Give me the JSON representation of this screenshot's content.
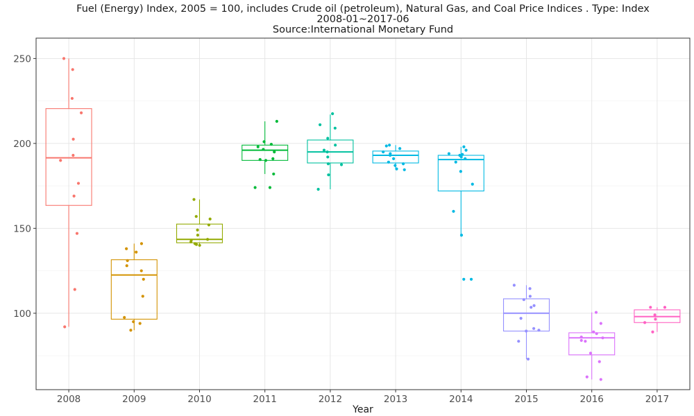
{
  "chart_data": {
    "type": "box",
    "title": "Fuel (Energy) Index, 2005 = 100, includes Crude oil (petroleum), Natural Gas, and Coal Price Indices . Type: Index",
    "subtitle": "2008-01~2017-06",
    "source": "Source:International Monetary Fund",
    "xlabel": "Year",
    "ylabel": "",
    "ylim": [
      55,
      262
    ],
    "yticks": [
      100,
      150,
      200,
      250
    ],
    "grid": true,
    "jitter_points": true,
    "categories": [
      "2008",
      "2009",
      "2010",
      "2011",
      "2012",
      "2013",
      "2014",
      "2015",
      "2016",
      "2017"
    ],
    "colors": [
      "#F8766D",
      "#D39200",
      "#93AA00",
      "#00BA38",
      "#00C19F",
      "#00B9E3",
      "#00B9E3",
      "#9590FF",
      "#DB72FB",
      "#FF61C3"
    ],
    "boxes": [
      {
        "year": "2008",
        "color": "#F8766D",
        "whisker_low": 92,
        "q1": 163.5,
        "median": 191.5,
        "q3": 220.5,
        "whisker_high": 250,
        "points": [
          243.5,
          250,
          226.5,
          218,
          202.5,
          193,
          190,
          176.5,
          169,
          147,
          114,
          92
        ]
      },
      {
        "year": "2009",
        "color": "#D39200",
        "whisker_low": 90,
        "q1": 96.5,
        "median": 122.5,
        "q3": 131.5,
        "whisker_high": 141,
        "points": [
          141,
          138,
          136,
          131,
          128,
          125,
          120,
          110,
          97.5,
          95,
          94,
          90
        ]
      },
      {
        "year": "2010",
        "color": "#93AA00",
        "whisker_low": 140,
        "q1": 141.5,
        "median": 143.5,
        "q3": 152.5,
        "whisker_high": 167,
        "points": [
          167,
          157,
          155.5,
          152,
          149,
          146,
          143.5,
          143,
          142,
          141,
          140.5,
          140
        ]
      },
      {
        "year": "2011",
        "color": "#00BA38",
        "whisker_low": 182,
        "q1": 190,
        "median": 196,
        "q3": 199,
        "whisker_high": 213,
        "points": [
          213,
          201,
          199.5,
          198,
          196.5,
          195,
          191,
          190.5,
          190,
          182,
          174,
          174
        ]
      },
      {
        "year": "2012",
        "color": "#00C19F",
        "whisker_low": 173,
        "q1": 188.5,
        "median": 195,
        "q3": 202,
        "whisker_high": 217,
        "points": [
          217.5,
          211,
          209,
          203,
          199,
          196,
          195,
          192,
          188,
          187.5,
          181.5,
          173
        ]
      },
      {
        "year": "2013",
        "color": "#00B9E3",
        "whisker_low": 185,
        "q1": 188.5,
        "median": 193,
        "q3": 195.5,
        "whisker_high": 199,
        "points": [
          199,
          198.5,
          197,
          195,
          194,
          193,
          191,
          189,
          188,
          187,
          185,
          184.5
        ]
      },
      {
        "year": "2014",
        "color": "#00B9E3",
        "whisker_low": 145,
        "q1": 172,
        "median": 190.5,
        "q3": 193,
        "whisker_high": 198,
        "points": [
          198,
          196,
          194,
          193.5,
          193,
          192,
          191,
          189,
          183.5,
          176,
          160,
          146,
          120,
          120
        ]
      },
      {
        "year": "2015",
        "color": "#9590FF",
        "whisker_low": 73,
        "q1": 89.5,
        "median": 100,
        "q3": 108.5,
        "whisker_high": 116.5,
        "points": [
          116.5,
          114.5,
          110,
          108,
          104.5,
          103.5,
          97,
          91,
          90,
          89.5,
          83.5,
          73
        ]
      },
      {
        "year": "2016",
        "color": "#DB72FB",
        "whisker_low": 61,
        "q1": 75.5,
        "median": 85.5,
        "q3": 88.5,
        "whisker_high": 100.5,
        "points": [
          100.5,
          94,
          89,
          88,
          86,
          85.5,
          84,
          83.5,
          76.5,
          71.5,
          62.5,
          61
        ]
      },
      {
        "year": "2017",
        "color": "#FF61C3",
        "whisker_low": 89,
        "q1": 94.5,
        "median": 98,
        "q3": 102,
        "whisker_high": 103.5,
        "points": [
          103.5,
          103.5,
          99,
          96.5,
          94.5,
          89
        ]
      }
    ]
  }
}
